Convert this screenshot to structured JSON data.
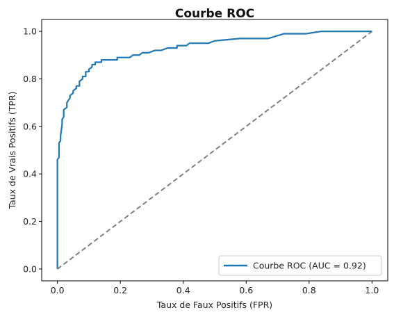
{
  "chart_data": {
    "type": "line",
    "title": "Courbe ROC",
    "xlabel": "Taux de Faux Positifs (FPR)",
    "ylabel": "Taux de Vrais Positifs (TPR)",
    "xlim": [
      -0.05,
      1.05
    ],
    "ylim": [
      -0.05,
      1.05
    ],
    "xticks": [
      "0.0",
      "0.2",
      "0.4",
      "0.6",
      "0.8",
      "1.0"
    ],
    "yticks": [
      "0.0",
      "0.2",
      "0.4",
      "0.6",
      "0.8",
      "1.0"
    ],
    "grid": false,
    "legend_position": "lower-right",
    "series": [
      {
        "name": "Courbe ROC (AUC = 0.92)",
        "color": "#1f77b4",
        "style": "solid",
        "x": [
          0.0,
          0.0,
          0.0,
          0.005,
          0.005,
          0.01,
          0.01,
          0.015,
          0.015,
          0.02,
          0.02,
          0.03,
          0.03,
          0.04,
          0.04,
          0.05,
          0.05,
          0.06,
          0.06,
          0.07,
          0.07,
          0.08,
          0.08,
          0.09,
          0.09,
          0.1,
          0.1,
          0.11,
          0.11,
          0.12,
          0.12,
          0.13,
          0.13,
          0.14,
          0.14,
          0.15,
          0.19,
          0.19,
          0.23,
          0.24,
          0.26,
          0.27,
          0.29,
          0.31,
          0.33,
          0.35,
          0.37,
          0.38,
          0.38,
          0.41,
          0.42,
          0.48,
          0.5,
          0.58,
          0.67,
          0.72,
          0.79,
          0.84,
          0.96,
          0.98,
          1.0
        ],
        "y": [
          0.0,
          0.44,
          0.46,
          0.47,
          0.53,
          0.54,
          0.56,
          0.61,
          0.63,
          0.64,
          0.67,
          0.68,
          0.7,
          0.72,
          0.73,
          0.74,
          0.75,
          0.76,
          0.77,
          0.77,
          0.79,
          0.8,
          0.81,
          0.81,
          0.83,
          0.83,
          0.84,
          0.85,
          0.86,
          0.86,
          0.87,
          0.87,
          0.87,
          0.87,
          0.88,
          0.88,
          0.88,
          0.89,
          0.89,
          0.9,
          0.9,
          0.91,
          0.91,
          0.92,
          0.92,
          0.93,
          0.93,
          0.93,
          0.94,
          0.94,
          0.95,
          0.95,
          0.96,
          0.97,
          0.97,
          0.99,
          0.99,
          1.0,
          1.0,
          1.0,
          1.0
        ]
      },
      {
        "color": "#808080",
        "style": "dashed",
        "x": [
          0.0,
          1.0
        ],
        "y": [
          0.0,
          1.0
        ]
      }
    ]
  }
}
